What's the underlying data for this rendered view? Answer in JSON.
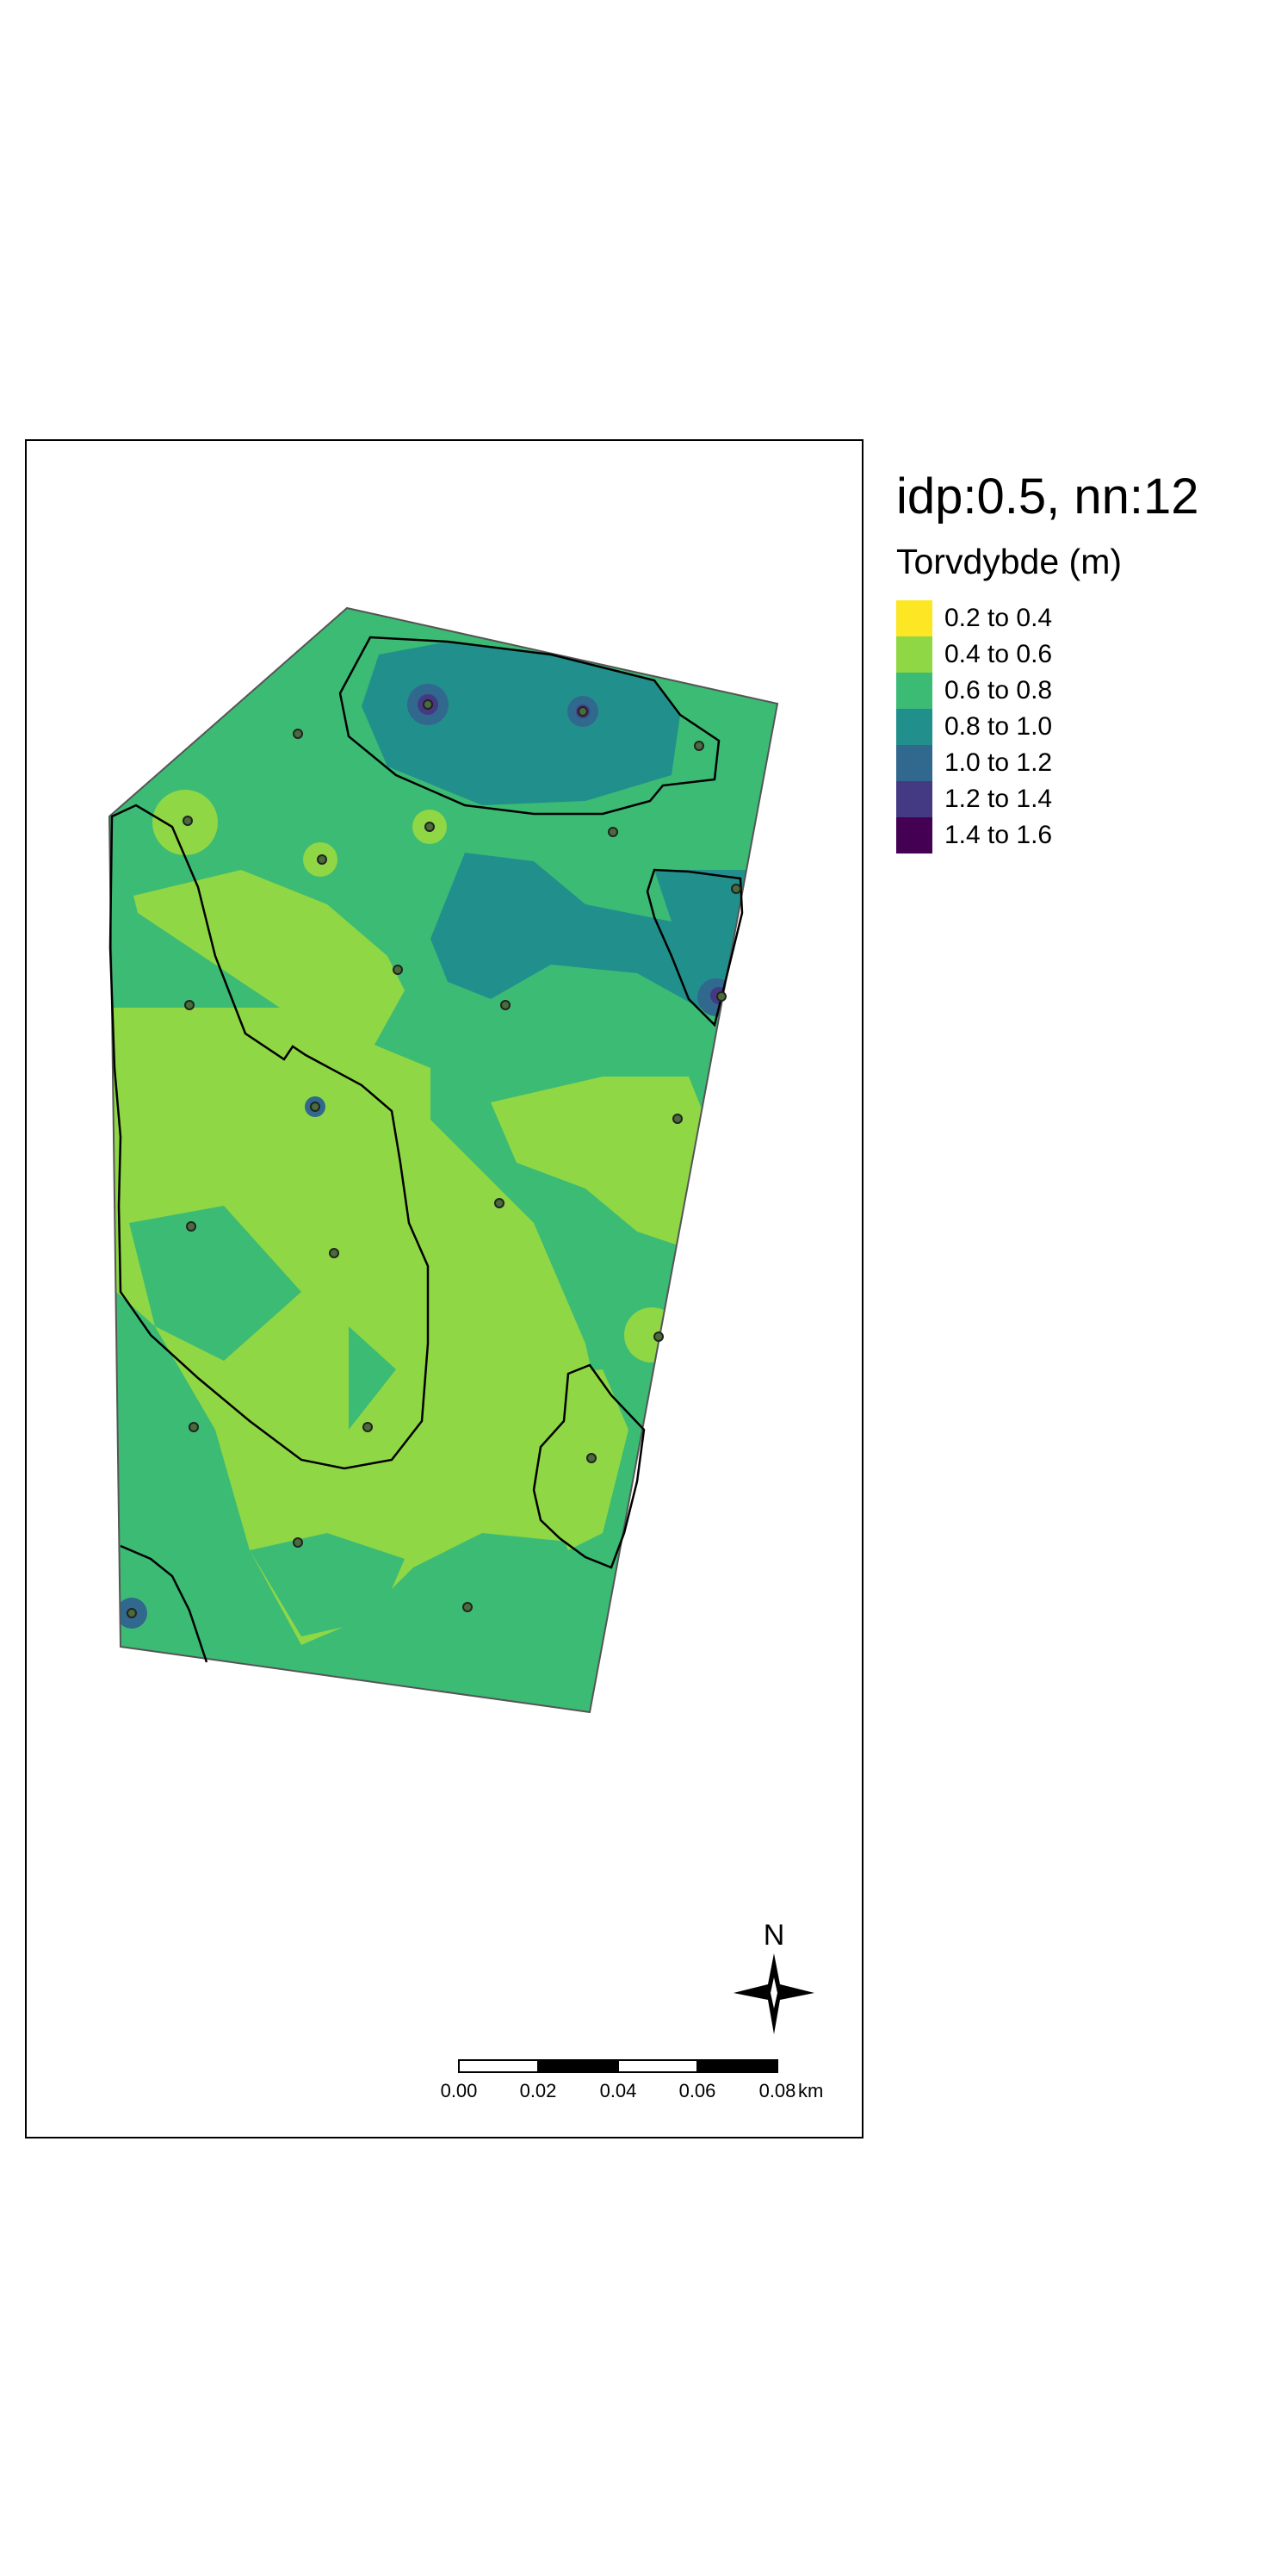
{
  "legend": {
    "title": "idp:0.5, nn:12",
    "subtitle": "Torvdybde (m)",
    "items": [
      {
        "label": "0.2 to 0.4",
        "color": "#fde725"
      },
      {
        "label": "0.4 to 0.6",
        "color": "#8fd744"
      },
      {
        "label": "0.6 to 0.8",
        "color": "#3cbb75"
      },
      {
        "label": "0.8 to 1.0",
        "color": "#21908c"
      },
      {
        "label": "1.0 to 1.2",
        "color": "#31688e"
      },
      {
        "label": "1.2 to 1.4",
        "color": "#443a83"
      },
      {
        "label": "1.4 to 1.6",
        "color": "#440154"
      }
    ]
  },
  "north_arrow": {
    "label": "N"
  },
  "scale_bar": {
    "ticks": [
      "0.00",
      "0.02",
      "0.04",
      "0.06",
      "0.08"
    ],
    "unit": "km"
  }
}
